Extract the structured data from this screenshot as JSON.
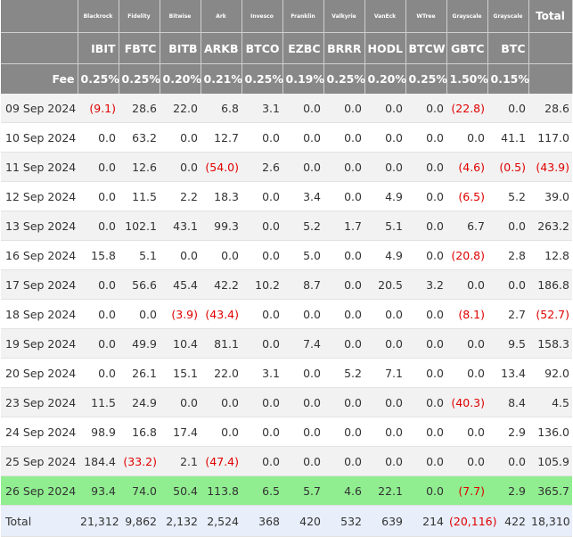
{
  "headers": {
    "total_label": "Total",
    "fee_label": "Fee",
    "issuers": [
      "Blackrock",
      "Fidelity",
      "Bitwise",
      "Ark",
      "Invesco",
      "Franklin",
      "Valkyrie",
      "VanEck",
      "WTree",
      "Grayscale",
      "Grayscale"
    ],
    "tickers": [
      "IBIT",
      "FBTC",
      "BITB",
      "ARKB",
      "BTCO",
      "EZBC",
      "BRRR",
      "HODL",
      "BTCW",
      "GBTC",
      "BTC"
    ],
    "fees": [
      "0.25%",
      "0.25%",
      "0.20%",
      "0.21%",
      "0.25%",
      "0.19%",
      "0.25%",
      "0.20%",
      "0.25%",
      "1.50%",
      "0.15%"
    ]
  },
  "rows": [
    {
      "date": "09 Sep 2024",
      "values": [
        "(9.1)",
        "28.6",
        "22.0",
        "6.8",
        "3.1",
        "0.0",
        "0.0",
        "0.0",
        "0.0",
        "(22.8)",
        "0.0"
      ],
      "total": "28.6"
    },
    {
      "date": "10 Sep 2024",
      "values": [
        "0.0",
        "63.2",
        "0.0",
        "12.7",
        "0.0",
        "0.0",
        "0.0",
        "0.0",
        "0.0",
        "0.0",
        "41.1"
      ],
      "total": "117.0"
    },
    {
      "date": "11 Sep 2024",
      "values": [
        "0.0",
        "12.6",
        "0.0",
        "(54.0)",
        "2.6",
        "0.0",
        "0.0",
        "0.0",
        "0.0",
        "(4.6)",
        "(0.5)"
      ],
      "total": "(43.9)"
    },
    {
      "date": "12 Sep 2024",
      "values": [
        "0.0",
        "11.5",
        "2.2",
        "18.3",
        "0.0",
        "3.4",
        "0.0",
        "4.9",
        "0.0",
        "(6.5)",
        "5.2"
      ],
      "total": "39.0"
    },
    {
      "date": "13 Sep 2024",
      "values": [
        "0.0",
        "102.1",
        "43.1",
        "99.3",
        "0.0",
        "5.2",
        "1.7",
        "5.1",
        "0.0",
        "6.7",
        "0.0"
      ],
      "total": "263.2"
    },
    {
      "date": "16 Sep 2024",
      "values": [
        "15.8",
        "5.1",
        "0.0",
        "0.0",
        "0.0",
        "5.0",
        "0.0",
        "4.9",
        "0.0",
        "(20.8)",
        "2.8"
      ],
      "total": "12.8"
    },
    {
      "date": "17 Sep 2024",
      "values": [
        "0.0",
        "56.6",
        "45.4",
        "42.2",
        "10.2",
        "8.7",
        "0.0",
        "20.5",
        "3.2",
        "0.0",
        "0.0"
      ],
      "total": "186.8"
    },
    {
      "date": "18 Sep 2024",
      "values": [
        "0.0",
        "0.0",
        "(3.9)",
        "(43.4)",
        "0.0",
        "0.0",
        "0.0",
        "0.0",
        "0.0",
        "(8.1)",
        "2.7"
      ],
      "total": "(52.7)"
    },
    {
      "date": "19 Sep 2024",
      "values": [
        "0.0",
        "49.9",
        "10.4",
        "81.1",
        "0.0",
        "7.4",
        "0.0",
        "0.0",
        "0.0",
        "0.0",
        "9.5"
      ],
      "total": "158.3"
    },
    {
      "date": "20 Sep 2024",
      "values": [
        "0.0",
        "26.1",
        "15.1",
        "22.0",
        "3.1",
        "0.0",
        "5.2",
        "7.1",
        "0.0",
        "0.0",
        "13.4"
      ],
      "total": "92.0"
    },
    {
      "date": "23 Sep 2024",
      "values": [
        "11.5",
        "24.9",
        "0.0",
        "0.0",
        "0.0",
        "0.0",
        "0.0",
        "0.0",
        "0.0",
        "(40.3)",
        "8.4"
      ],
      "total": "4.5"
    },
    {
      "date": "24 Sep 2024",
      "values": [
        "98.9",
        "16.8",
        "17.4",
        "0.0",
        "0.0",
        "0.0",
        "0.0",
        "0.0",
        "0.0",
        "0.0",
        "2.9"
      ],
      "total": "136.0"
    },
    {
      "date": "25 Sep 2024",
      "values": [
        "184.4",
        "(33.2)",
        "2.1",
        "(47.4)",
        "0.0",
        "0.0",
        "0.0",
        "0.0",
        "0.0",
        "0.0",
        "0.0"
      ],
      "total": "105.9"
    },
    {
      "date": "26 Sep 2024",
      "values": [
        "93.4",
        "74.0",
        "50.4",
        "113.8",
        "6.5",
        "5.7",
        "4.6",
        "22.1",
        "0.0",
        "(7.7)",
        "2.9"
      ],
      "total": "365.7",
      "highlight": true
    }
  ],
  "totals": {
    "label": "Total",
    "values": [
      "21,312",
      "9,862",
      "2,132",
      "2,524",
      "368",
      "420",
      "532",
      "639",
      "214",
      "(20,116)",
      "422"
    ],
    "total": "18,310"
  },
  "colors": {
    "header_bg": "#888888",
    "negative": "#e00000",
    "highlight_row": "#90ee90",
    "total_row_bg": "#e8eefa",
    "stripe": "#f2f2f2"
  }
}
